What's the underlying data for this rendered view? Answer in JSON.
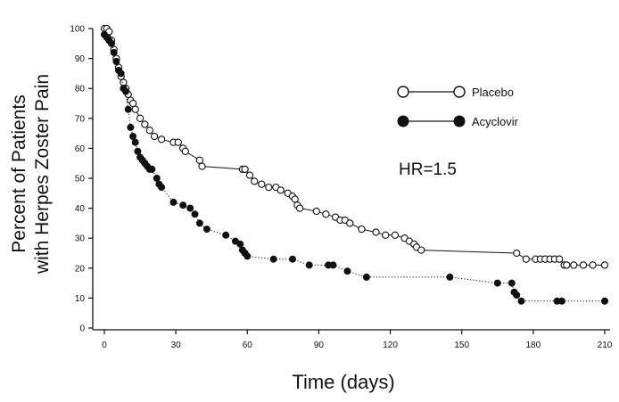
{
  "chart_data": {
    "type": "line",
    "title": "",
    "xlabel": "Time (days)",
    "ylabel": "Percent of Patients with Herpes Zoster Pain",
    "ylabel_lines": [
      "Percent of Patients",
      "with Herpes Zoster Pain"
    ],
    "xlim": [
      0,
      210
    ],
    "ylim": [
      0,
      100
    ],
    "x_ticks": [
      0,
      30,
      60,
      90,
      120,
      150,
      180,
      210
    ],
    "y_ticks": [
      0,
      10,
      20,
      30,
      40,
      50,
      60,
      70,
      80,
      90,
      100
    ],
    "x_tick_labels": [
      "0",
      "30",
      "60",
      "90",
      "120",
      "150",
      "180",
      "210"
    ],
    "y_tick_labels": [
      "0",
      "10",
      "20",
      "30",
      "40",
      "50",
      "60",
      "70",
      "80",
      "90",
      "100"
    ],
    "grid": false,
    "legend_position": "top-right",
    "annotation": "HR=1.5",
    "series": [
      {
        "name": "Placebo",
        "marker": "open-circle",
        "line_style": "solid",
        "points": [
          [
            0,
            100
          ],
          [
            1,
            100
          ],
          [
            2,
            99
          ],
          [
            3,
            96
          ],
          [
            4,
            93
          ],
          [
            5,
            90
          ],
          [
            6,
            87
          ],
          [
            7,
            84
          ],
          [
            8,
            82
          ],
          [
            9,
            80
          ],
          [
            10,
            78
          ],
          [
            11,
            76
          ],
          [
            12,
            75
          ],
          [
            13,
            73
          ],
          [
            15,
            70
          ],
          [
            17,
            68
          ],
          [
            19,
            66
          ],
          [
            21,
            64
          ],
          [
            24,
            63
          ],
          [
            29,
            62
          ],
          [
            31,
            62
          ],
          [
            33,
            60
          ],
          [
            34,
            59
          ],
          [
            40,
            56
          ],
          [
            41,
            54
          ],
          [
            58,
            53
          ],
          [
            59,
            53
          ],
          [
            61,
            51
          ],
          [
            63,
            49
          ],
          [
            66,
            48
          ],
          [
            69,
            47
          ],
          [
            72,
            47
          ],
          [
            74,
            46
          ],
          [
            77,
            45
          ],
          [
            79,
            44
          ],
          [
            80,
            43
          ],
          [
            81,
            41
          ],
          [
            82,
            40
          ],
          [
            89,
            39
          ],
          [
            93,
            38
          ],
          [
            97,
            37
          ],
          [
            99,
            36
          ],
          [
            101,
            36
          ],
          [
            103,
            35
          ],
          [
            108,
            33
          ],
          [
            114,
            32
          ],
          [
            118,
            31
          ],
          [
            122,
            31
          ],
          [
            126,
            30
          ],
          [
            128,
            29
          ],
          [
            130,
            28
          ],
          [
            131,
            27
          ],
          [
            133,
            26
          ],
          [
            173,
            25
          ],
          [
            177,
            23
          ],
          [
            181,
            23
          ],
          [
            183,
            23
          ],
          [
            185,
            23
          ],
          [
            187,
            23
          ],
          [
            189,
            23
          ],
          [
            191,
            23
          ],
          [
            193,
            21
          ],
          [
            194,
            21
          ],
          [
            197,
            21
          ],
          [
            201,
            21
          ],
          [
            205,
            21
          ],
          [
            210,
            21
          ]
        ]
      },
      {
        "name": "Acyclovir",
        "marker": "filled-circle",
        "line_style": "dotted",
        "points": [
          [
            0,
            98
          ],
          [
            1,
            97
          ],
          [
            2,
            96
          ],
          [
            3,
            95
          ],
          [
            4,
            92
          ],
          [
            5,
            89
          ],
          [
            6,
            86
          ],
          [
            7,
            85
          ],
          [
            8,
            80
          ],
          [
            9,
            79
          ],
          [
            10,
            73
          ],
          [
            11,
            67
          ],
          [
            12,
            64
          ],
          [
            13,
            62
          ],
          [
            14,
            59
          ],
          [
            15,
            57
          ],
          [
            16,
            56
          ],
          [
            17,
            55
          ],
          [
            18,
            54
          ],
          [
            19,
            53
          ],
          [
            20,
            53
          ],
          [
            22,
            50
          ],
          [
            23,
            48
          ],
          [
            24,
            47
          ],
          [
            29,
            42
          ],
          [
            33,
            41
          ],
          [
            36,
            40
          ],
          [
            38,
            38
          ],
          [
            40,
            35
          ],
          [
            43,
            33
          ],
          [
            51,
            31
          ],
          [
            55,
            29
          ],
          [
            57,
            28
          ],
          [
            58,
            26
          ],
          [
            59,
            25
          ],
          [
            60,
            24
          ],
          [
            71,
            23
          ],
          [
            79,
            23
          ],
          [
            86,
            21
          ],
          [
            94,
            21
          ],
          [
            96,
            21
          ],
          [
            102,
            19
          ],
          [
            110,
            17
          ],
          [
            145,
            17
          ],
          [
            165,
            15
          ],
          [
            171,
            15
          ],
          [
            172,
            12
          ],
          [
            173,
            11
          ],
          [
            175,
            9
          ],
          [
            190,
            9
          ],
          [
            192,
            9
          ],
          [
            210,
            9
          ]
        ]
      }
    ]
  }
}
